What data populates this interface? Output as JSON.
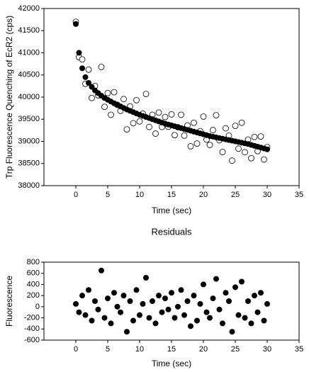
{
  "chart_data": [
    {
      "type": "scatter",
      "xlabel": "Time (sec)",
      "ylabel": "Trp Fluorescence Quenching of EcR2 (cps)",
      "xlim": [
        -5,
        35
      ],
      "xticks": [
        0,
        5,
        10,
        15,
        20,
        25,
        30,
        35
      ],
      "ylim": [
        38000,
        42000
      ],
      "yticks": [
        38000,
        38500,
        39000,
        39500,
        40000,
        40500,
        41000,
        41500,
        42000
      ],
      "x": [
        0,
        0.5,
        1,
        1.5,
        2,
        2.5,
        3,
        3.5,
        4,
        4.5,
        5,
        5.5,
        6,
        6.5,
        7,
        7.5,
        8,
        8.5,
        9,
        9.5,
        10,
        10.5,
        11,
        11.5,
        12,
        12.5,
        13,
        13.5,
        14,
        14.5,
        15,
        15.5,
        16,
        16.5,
        17,
        17.5,
        18,
        18.5,
        19,
        19.5,
        20,
        20.5,
        21,
        21.5,
        22,
        22.5,
        23,
        23.5,
        24,
        24.5,
        25,
        25.5,
        26,
        26.5,
        27,
        27.5,
        28,
        28.5,
        29,
        29.5,
        30
      ],
      "series": [
        {
          "color": "#000000",
          "marker": "open",
          "values": [
            41700,
            40900,
            40850,
            40300,
            40620,
            39980,
            40250,
            40040,
            40680,
            39780,
            40090,
            39600,
            40110,
            39825,
            39690,
            39955,
            39270,
            39790,
            39410,
            39930,
            39450,
            39625,
            40070,
            39325,
            39600,
            39175,
            39650,
            39325,
            39550,
            39330,
            39610,
            39140,
            39320,
            39600,
            39130,
            39360,
            38890,
            39420,
            38950,
            39230,
            39560,
            39040,
            38920,
            39255,
            39590,
            39025,
            38760,
            39295,
            39130,
            38565,
            39350,
            38835,
            39420,
            38755,
            39040,
            38620,
            39100,
            38780,
            39110,
            38590,
            38870
          ]
        },
        {
          "color": "#000000",
          "marker": "filled",
          "values": [
            41650,
            41000,
            40650,
            40450,
            40320,
            40230,
            40150,
            40090,
            40030,
            39980,
            39940,
            39900,
            39860,
            39825,
            39790,
            39755,
            39720,
            39690,
            39660,
            39630,
            39600,
            39575,
            39550,
            39525,
            39500,
            39475,
            39450,
            39425,
            39400,
            39380,
            39360,
            39340,
            39320,
            39300,
            39280,
            39260,
            39240,
            39220,
            39200,
            39180,
            39160,
            39140,
            39120,
            39105,
            39090,
            39075,
            39060,
            39045,
            39030,
            39015,
            39000,
            38985,
            38970,
            38955,
            38940,
            38920,
            38900,
            38880,
            38860,
            38840,
            38820
          ]
        }
      ]
    },
    {
      "type": "scatter",
      "title": "Residuals",
      "xlabel": "Time  (sec)",
      "ylabel": "Fluorescence",
      "xlim": [
        -5,
        35
      ],
      "xticks": [
        0,
        5,
        10,
        15,
        20,
        25,
        30,
        35
      ],
      "ylim": [
        -600,
        800
      ],
      "yticks": [
        -600,
        -400,
        -200,
        0,
        200,
        400,
        600,
        800
      ],
      "x": [
        0,
        0.5,
        1,
        1.5,
        2,
        2.5,
        3,
        3.5,
        4,
        4.5,
        5,
        5.5,
        6,
        6.5,
        7,
        7.5,
        8,
        8.5,
        9,
        9.5,
        10,
        10.5,
        11,
        11.5,
        12,
        12.5,
        13,
        13.5,
        14,
        14.5,
        15,
        15.5,
        16,
        16.5,
        17,
        17.5,
        18,
        18.5,
        19,
        19.5,
        20,
        20.5,
        21,
        21.5,
        22,
        22.5,
        23,
        23.5,
        24,
        24.5,
        25,
        25.5,
        26,
        26.5,
        27,
        27.5,
        28,
        28.5,
        29,
        29.5,
        30
      ],
      "series": [
        {
          "color": "#000000",
          "marker": "filled",
          "values": [
            50,
            -100,
            200,
            -150,
            300,
            -250,
            100,
            -50,
            650,
            -200,
            150,
            -300,
            250,
            0,
            -100,
            200,
            -450,
            100,
            -250,
            300,
            -150,
            50,
            520,
            -200,
            100,
            -300,
            200,
            -100,
            150,
            -50,
            250,
            -200,
            0,
            300,
            -150,
            100,
            -350,
            200,
            -250,
            50,
            400,
            -100,
            -200,
            150,
            500,
            -50,
            -300,
            250,
            100,
            -450,
            350,
            -150,
            450,
            -200,
            100,
            -300,
            200,
            -100,
            250,
            -250,
            50
          ]
        }
      ]
    }
  ]
}
